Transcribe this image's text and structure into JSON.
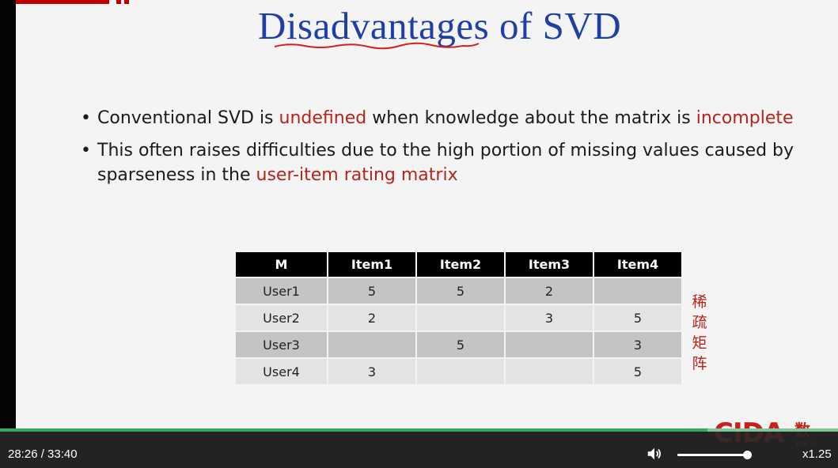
{
  "slide": {
    "title": "Disadvantages of SVD",
    "bullets": [
      {
        "segments": [
          {
            "text": "Conventional SVD is ",
            "highlight": false
          },
          {
            "text": "undefined",
            "highlight": true
          },
          {
            "text": " when knowledge about the matrix is ",
            "highlight": false
          },
          {
            "text": "incomplete",
            "highlight": true
          }
        ]
      },
      {
        "segments": [
          {
            "text": "This often raises difficulties due to the high portion of missing values caused by sparseness in the ",
            "highlight": false
          },
          {
            "text": "user-item rating matrix",
            "highlight": true
          }
        ]
      }
    ],
    "table": {
      "headers": [
        "M",
        "Item1",
        "Item2",
        "Item3",
        "Item4"
      ],
      "rows": [
        [
          "User1",
          "5",
          "5",
          "2",
          ""
        ],
        [
          "User2",
          "2",
          "",
          "3",
          "5"
        ],
        [
          "User3",
          "",
          "5",
          "",
          "3"
        ],
        [
          "User4",
          "3",
          "",
          "",
          "5"
        ]
      ]
    },
    "sparse_label": [
      "稀",
      "疏",
      "矩",
      "阵"
    ],
    "logo": {
      "text": "CIDA",
      "cn": "数",
      "url_fragment": "www"
    },
    "highlight_color": "#b5241b",
    "title_color": "#1f3ea8"
  },
  "player": {
    "time_display": "28:26 / 33:40",
    "progress_fraction": 0.844,
    "volume_fraction": 1.0,
    "volume_icon": "speaker-icon",
    "speed_label": "x1.25",
    "accent_color": "#37a85e"
  }
}
